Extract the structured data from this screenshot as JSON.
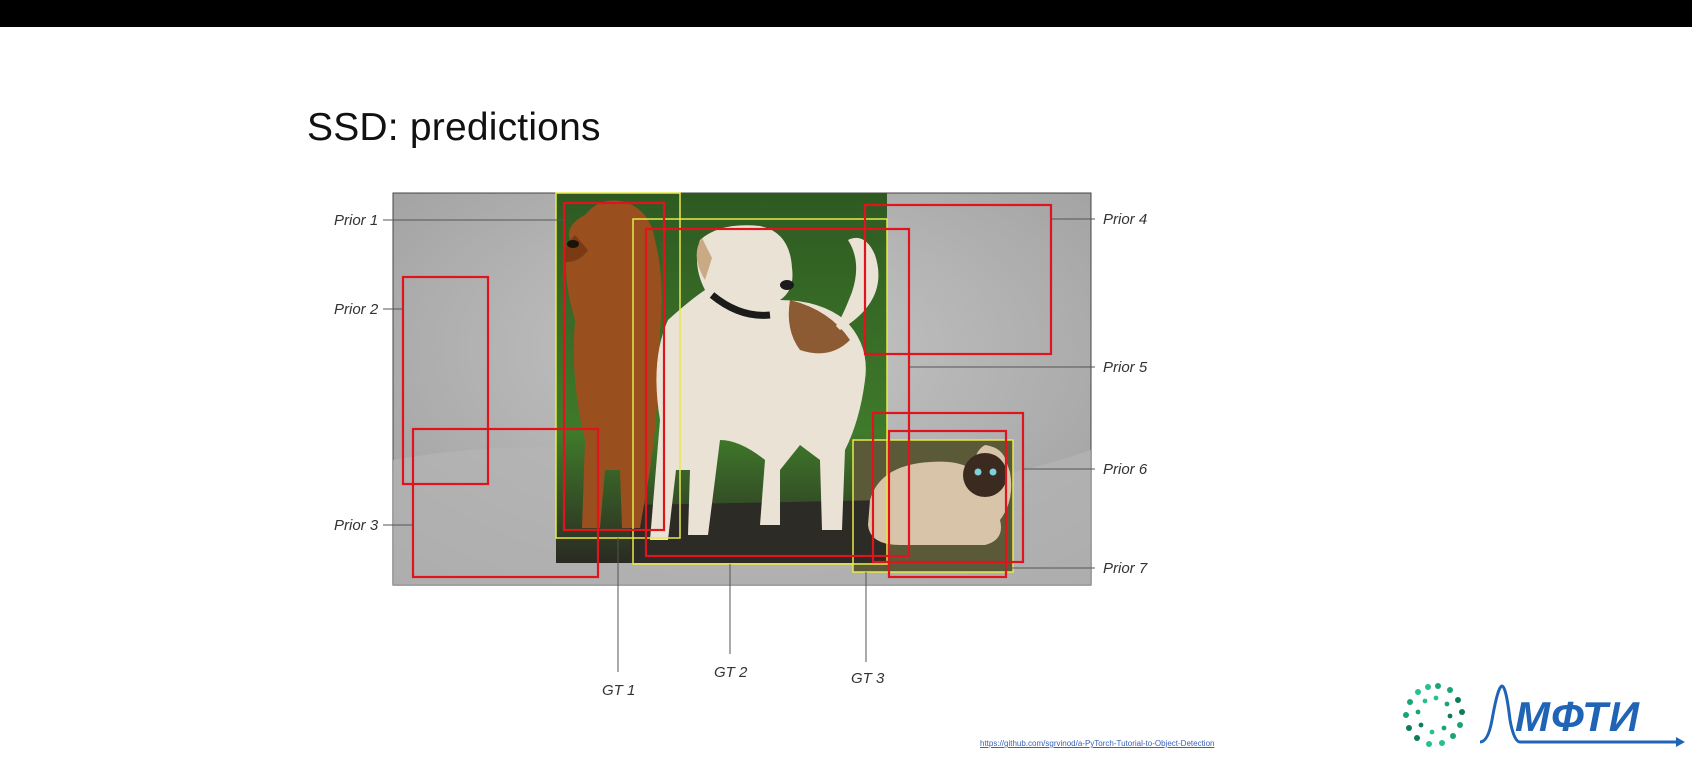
{
  "slide": {
    "title": "SSD: predictions"
  },
  "figure": {
    "prior_labels": [
      "Prior 1",
      "Prior 2",
      "Prior 3",
      "Prior 4",
      "Prior 5",
      "Prior 6",
      "Prior 7"
    ],
    "gt_labels": [
      "GT 1",
      "GT 2",
      "GT 3"
    ],
    "colors": {
      "prior_box": "#e0141c",
      "gt_box": "#e8e84a",
      "leader_line": "#555555"
    }
  },
  "footer": {
    "source_link": "https://github.com/sgrvinod/a-PyTorch-Tutorial-to-Object-Detection",
    "logo_text": "МФТИ"
  }
}
